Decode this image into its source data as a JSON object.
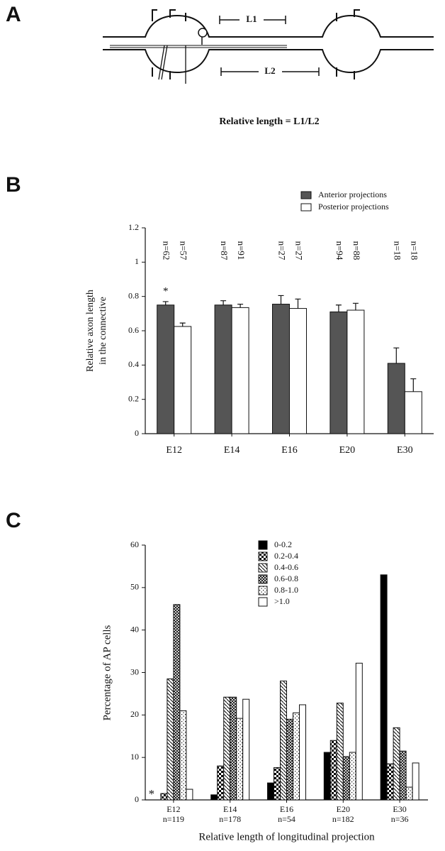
{
  "panel_labels": [
    "A",
    "B",
    "C"
  ],
  "diagram": {
    "labels": [
      "L1",
      "L2"
    ],
    "formula": "Relative length = L1/L2"
  },
  "chart_data": [
    {
      "type": "bar",
      "ylabel": [
        "Relative axon length",
        "in the connective"
      ],
      "categories": [
        "E12",
        "E14",
        "E16",
        "E20",
        "E30"
      ],
      "series": [
        {
          "name": "Anterior projections",
          "color": "#555555",
          "values": [
            0.75,
            0.75,
            0.755,
            0.71,
            0.41
          ],
          "errors": [
            0.02,
            0.025,
            0.05,
            0.04,
            0.09
          ],
          "n_labels": [
            "n=62",
            "n=87",
            "n=27",
            "n=94",
            "n=18"
          ]
        },
        {
          "name": "Posterior projections",
          "color": "#ffffff",
          "values": [
            0.625,
            0.735,
            0.73,
            0.72,
            0.245
          ],
          "errors": [
            0.02,
            0.02,
            0.055,
            0.04,
            0.075
          ],
          "n_labels": [
            "n=57",
            "n=91",
            "n=27",
            "n=88",
            "n=18"
          ]
        }
      ],
      "annotations": [
        "*"
      ],
      "ylim": [
        0,
        1.2
      ],
      "yticks": [
        0,
        0.2,
        0.4,
        0.6,
        0.8,
        1,
        1.2
      ],
      "legend": "top-right"
    },
    {
      "type": "bar",
      "ylabel": "Percentage of AP cells",
      "xlabel": "Relative length of longitudinal projection",
      "categories": [
        "E12",
        "E14",
        "E16",
        "E20",
        "E30"
      ],
      "category_n": [
        "n=119",
        "n=178",
        "n=54",
        "n=182",
        "n=36"
      ],
      "series": [
        {
          "name": "0-0.2",
          "color": "#000000",
          "values": [
            0,
            1.2,
            4,
            11.2,
            53
          ]
        },
        {
          "name": "0.2-0.4",
          "color": "#000000",
          "pattern": "checker",
          "values": [
            1.5,
            8,
            7.6,
            14,
            8.5
          ]
        },
        {
          "name": "0.4-0.6",
          "color": "#000000",
          "pattern": "diagonal",
          "values": [
            28.5,
            24.2,
            28,
            22.8,
            17
          ]
        },
        {
          "name": "0.6-0.8",
          "color": "#000000",
          "pattern": "crosshatch",
          "values": [
            46,
            24.2,
            19,
            10.2,
            11.5
          ]
        },
        {
          "name": "0.8-1.0",
          "color": "#000000",
          "pattern": "dots",
          "values": [
            21,
            19.2,
            20.5,
            11.2,
            3
          ]
        },
        {
          "name": ">1.0",
          "color": "#ffffff",
          "values": [
            2.5,
            23.7,
            22.4,
            32.2,
            8.7
          ]
        }
      ],
      "annotations": [
        "*"
      ],
      "ylim": [
        0,
        60
      ],
      "yticks": [
        0,
        10,
        20,
        30,
        40,
        50,
        60
      ],
      "legend": "top-right"
    }
  ]
}
